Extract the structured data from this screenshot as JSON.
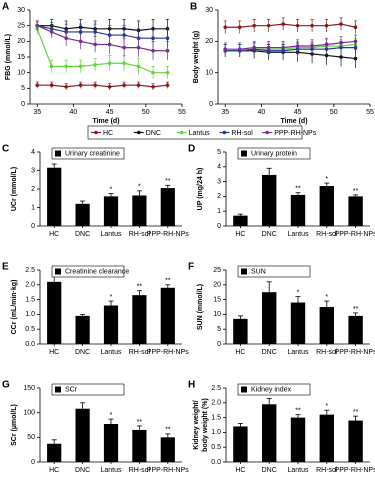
{
  "chart_data": [
    {
      "type": "line",
      "label": "A",
      "ylabel": "FBG (mmol/L)",
      "xlabel": "Time (d)",
      "x": [
        35,
        37,
        39,
        41,
        43,
        45,
        47,
        49,
        51,
        53
      ],
      "xlim": [
        34,
        55
      ],
      "xticks": [
        35,
        40,
        45,
        50,
        55
      ],
      "ylim": [
        0,
        30
      ],
      "yticks": [
        0,
        5,
        10,
        15,
        20,
        25,
        30
      ],
      "legend": true,
      "series": [
        {
          "name": "HC",
          "color": "#8b1a1a",
          "values": [
            6,
            6,
            5.5,
            6,
            6,
            5.5,
            6,
            6,
            5.5,
            6
          ],
          "errors": [
            1,
            1,
            1,
            1,
            1,
            1,
            1,
            1,
            1,
            1
          ]
        },
        {
          "name": "DNC",
          "color": "#111111",
          "values": [
            25,
            25,
            24,
            24.5,
            24,
            24,
            24,
            23.5,
            24,
            24
          ],
          "errors": [
            1.5,
            2,
            2.5,
            2.5,
            2.5,
            3,
            3,
            3,
            3,
            3
          ]
        },
        {
          "name": "Lantus",
          "color": "#5fd63a",
          "values": [
            24,
            12,
            12,
            12,
            12.5,
            13,
            13,
            12,
            10,
            10
          ],
          "errors": [
            2,
            2,
            2,
            2,
            2,
            2.5,
            2.5,
            2.5,
            2,
            2
          ]
        },
        {
          "name": "RH-sol",
          "color": "#1f3a93",
          "values": [
            25,
            24,
            23,
            23,
            23,
            22,
            22,
            21,
            21,
            21
          ],
          "errors": [
            1.5,
            2,
            2.5,
            2.5,
            2.5,
            3,
            3,
            3,
            3,
            3
          ]
        },
        {
          "name": "PPP-RH-NPs",
          "color": "#7b2d8e",
          "values": [
            25,
            23,
            21,
            20,
            19,
            19,
            18,
            18,
            17,
            17
          ],
          "errors": [
            1.5,
            2,
            2.5,
            2.5,
            2.5,
            3,
            3,
            3,
            3,
            3
          ]
        }
      ]
    },
    {
      "type": "line",
      "label": "B",
      "ylabel": "Body weight (g)",
      "xlabel": "Time (d)",
      "x": [
        35,
        37,
        39,
        41,
        43,
        45,
        47,
        49,
        51,
        53
      ],
      "xlim": [
        34,
        55
      ],
      "xticks": [
        35,
        40,
        45,
        50,
        55
      ],
      "ylim": [
        0,
        30
      ],
      "yticks": [
        0,
        10,
        20,
        30
      ],
      "series": [
        {
          "color": "#8b1a1a",
          "values": [
            24.5,
            24.5,
            25,
            25,
            25.5,
            25,
            25,
            25,
            25.5,
            24.5
          ],
          "errors": [
            2,
            2,
            2,
            2,
            2,
            2,
            2,
            2,
            2,
            2
          ]
        },
        {
          "color": "#111111",
          "values": [
            17,
            17,
            17,
            16.5,
            16.5,
            16.5,
            16,
            15.5,
            15,
            14.5
          ],
          "errors": [
            2,
            2,
            2.5,
            2.5,
            2.5,
            3,
            3,
            3,
            3,
            3
          ]
        },
        {
          "color": "#5fd63a",
          "values": [
            17,
            17,
            17.5,
            17.5,
            17.5,
            18,
            18,
            18.5,
            18.5,
            19
          ],
          "errors": [
            2,
            2,
            2,
            2,
            2,
            2,
            2,
            2,
            2,
            2
          ]
        },
        {
          "color": "#1f3a93",
          "values": [
            17,
            17,
            17.5,
            17,
            17,
            17.5,
            17.5,
            17.5,
            18,
            18
          ],
          "errors": [
            2,
            2,
            2,
            2,
            2,
            2,
            2,
            2,
            2,
            2
          ]
        },
        {
          "color": "#7b2d8e",
          "values": [
            17.5,
            17.5,
            18,
            18,
            18,
            18.5,
            18.5,
            19,
            19.5,
            20
          ],
          "errors": [
            2,
            2,
            2,
            2,
            2,
            2,
            2,
            2,
            2,
            2
          ]
        }
      ]
    },
    {
      "type": "bar",
      "label": "C",
      "ylabel": "UCr (mmol/L)",
      "legend_label": "Urinary creatinine",
      "color": "#000000",
      "categories": [
        "HC",
        "DNC",
        "Lantus",
        "RH-sol",
        "PPP-RH-NPs"
      ],
      "values": [
        3.15,
        1.2,
        1.6,
        1.65,
        2.05
      ],
      "errors": [
        0.2,
        0.15,
        0.15,
        0.25,
        0.15
      ],
      "annotations": [
        null,
        null,
        "*",
        "*",
        "**"
      ],
      "ylim": [
        0,
        4
      ],
      "yticks": [
        0,
        1,
        2,
        3,
        4
      ]
    },
    {
      "type": "bar",
      "label": "D",
      "ylabel": "UP (mg/24 h)",
      "legend_label": "Urinary protein",
      "color": "#000000",
      "categories": [
        "HC",
        "DNC",
        "Lantus",
        "RH-sol",
        "PPP-RH-NPs"
      ],
      "values": [
        0.7,
        3.45,
        2.1,
        2.7,
        2.0
      ],
      "errors": [
        0.1,
        0.45,
        0.15,
        0.2,
        0.1
      ],
      "annotations": [
        null,
        null,
        "**",
        "*",
        "**"
      ],
      "ylim": [
        0,
        5
      ],
      "yticks": [
        0,
        1,
        2,
        3,
        4,
        5
      ]
    },
    {
      "type": "bar",
      "label": "E",
      "ylabel": "CCr (mL/min·kg)",
      "legend_label": "Creatinine clearance",
      "color": "#000000",
      "categories": [
        "HC",
        "DNC",
        "Lantus",
        "RH-sol",
        "PPP-RH-NPs"
      ],
      "values": [
        2.1,
        0.95,
        1.3,
        1.65,
        1.9
      ],
      "errors": [
        0.25,
        0.05,
        0.15,
        0.15,
        0.1
      ],
      "annotations": [
        null,
        null,
        "*",
        "**",
        "**"
      ],
      "ylim": [
        0,
        2.5
      ],
      "yticks": [
        {
          "value": 0,
          "label": "0.0"
        },
        0.5,
        {
          "value": 1,
          "label": "1.0"
        },
        1.5,
        {
          "value": 2,
          "label": "2.0"
        },
        2.5
      ]
    },
    {
      "type": "bar",
      "label": "F",
      "ylabel": "SUN (mmol/L)",
      "legend_label": "SUN",
      "color": "#000000",
      "categories": [
        "HC",
        "DNC",
        "Lantus",
        "RH-sol",
        "PPP-RH-NPs"
      ],
      "values": [
        8.5,
        17.5,
        14,
        12.5,
        9.5
      ],
      "errors": [
        1,
        3.5,
        2,
        2,
        1
      ],
      "annotations": [
        null,
        null,
        "*",
        "*",
        "**"
      ],
      "ylim": [
        0,
        25
      ],
      "yticks": [
        0,
        5,
        10,
        15,
        20,
        25
      ]
    },
    {
      "type": "bar",
      "label": "G",
      "ylabel": "SCr (µmol/L)",
      "legend_label": "SCr",
      "color": "#000000",
      "categories": [
        "HC",
        "DNC",
        "Lantus",
        "RH-sol",
        "PPP-RH-NPs"
      ],
      "values": [
        37,
        108,
        77,
        65,
        50
      ],
      "errors": [
        8,
        12,
        10,
        8,
        7
      ],
      "annotations": [
        null,
        null,
        "*",
        "**",
        "**"
      ],
      "ylim": [
        0,
        150
      ],
      "yticks": [
        0,
        50,
        100,
        150
      ]
    },
    {
      "type": "bar",
      "label": "H",
      "ylabel": [
        "Kidney weight/",
        "body weight (%)"
      ],
      "legend_label": "Kidney index",
      "color": "#000000",
      "categories": [
        "HC",
        "DNC",
        "Lantus",
        "RH-sol",
        "PPP-RH-NPs"
      ],
      "values": [
        1.2,
        1.95,
        1.5,
        1.6,
        1.4
      ],
      "errors": [
        0.1,
        0.2,
        0.1,
        0.15,
        0.15
      ],
      "annotations": [
        null,
        null,
        "**",
        "*",
        "**"
      ],
      "ylim": [
        0,
        2.5
      ],
      "yticks": [
        {
          "value": 0,
          "label": "0.0"
        },
        0.5,
        {
          "value": 1,
          "label": "1.0"
        },
        1.5,
        {
          "value": 2,
          "label": "2.0"
        },
        2.5
      ]
    }
  ]
}
